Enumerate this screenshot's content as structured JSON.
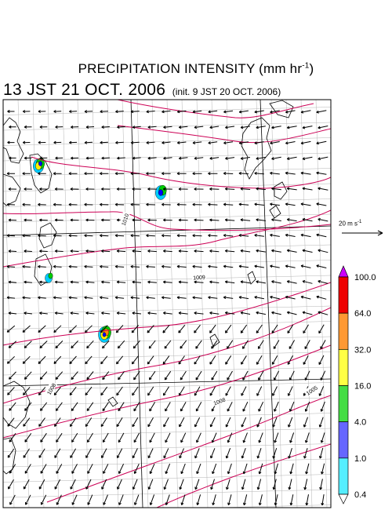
{
  "header": {
    "title_text": "PRECIPITATION INTENSITY (mm hr",
    "title_exp": "-1",
    "title_close": ")",
    "valid_time": "13 JST 21 OCT. 2006",
    "init_time": "(init. 9 JST 20 OCT. 2006)"
  },
  "map": {
    "isobar_labels": [
      "1010",
      "1009",
      "1008",
      "1008",
      "1005"
    ],
    "colors": {
      "wind_vectors": "#000000",
      "coastline": "#000000",
      "isobars": "#cc0055",
      "grid": "#b4b4b4",
      "frame": "#000000"
    },
    "rain_cells": [
      {
        "name": "cell-nw",
        "levels": [
          "#00ccff",
          "#00cc00",
          "#ffee00",
          "#0000ff"
        ]
      },
      {
        "name": "cell-center",
        "levels": [
          "#00ccff",
          "#00cc00",
          "#0000ff"
        ]
      },
      {
        "name": "cell-west",
        "levels": [
          "#00ccff",
          "#00cc00"
        ]
      },
      {
        "name": "cell-south",
        "levels": [
          "#00ccff",
          "#00cc00",
          "#ffee00",
          "#ff8800",
          "#0000ff"
        ]
      }
    ]
  },
  "vector_legend": {
    "speed": "20",
    "unit": "m s",
    "unit_exp": "-1"
  },
  "colorbar": {
    "labels": [
      "100.0",
      "64.0",
      "32.0",
      "16.0",
      "4.0",
      "1.0",
      "0.4"
    ],
    "colors": [
      "#ee0000",
      "#ff9933",
      "#ffff44",
      "#44dd44",
      "#6666ff",
      "#55eeff"
    ],
    "over_color": "#cc00ff",
    "under_color": "#ffffff"
  }
}
